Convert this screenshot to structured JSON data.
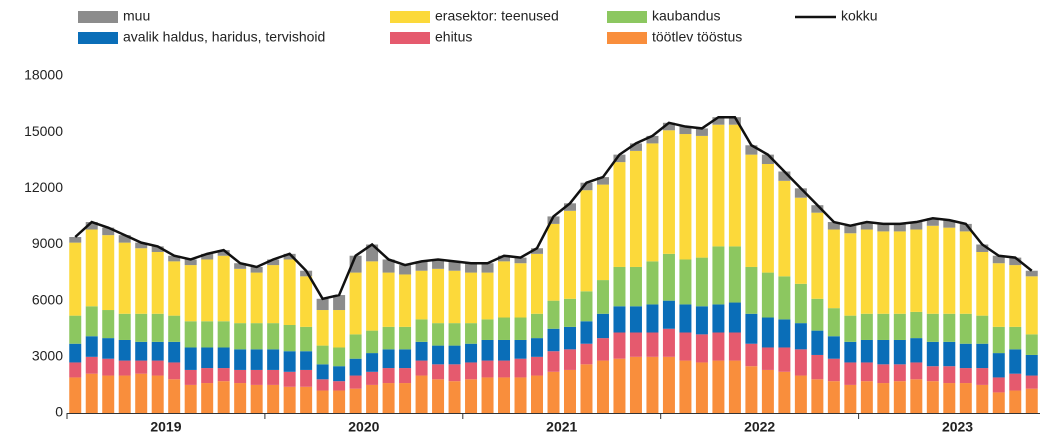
{
  "chart_data": {
    "type": "stacked_bar_line",
    "years": [
      "2019",
      "2020",
      "2021",
      "2022",
      "2023"
    ],
    "ylim": [
      0,
      18000
    ],
    "yticks": [
      0,
      3000,
      6000,
      9000,
      12000,
      15000,
      18000
    ],
    "grid": false,
    "series": [
      {
        "name": "töötlev tööstus",
        "color": "#f98e3c",
        "values": [
          1900,
          2100,
          2000,
          2000,
          2100,
          2000,
          1800,
          1500,
          1600,
          1700,
          1600,
          1500,
          1500,
          1400,
          1400,
          1200,
          1200,
          1300,
          1500,
          1600,
          1600,
          2000,
          1800,
          1700,
          1800,
          1900,
          1900,
          1900,
          2000,
          2200,
          2300,
          2600,
          2800,
          2900,
          3000,
          3000,
          3000,
          2800,
          2700,
          2800,
          2800,
          2500,
          2300,
          2200,
          2000,
          1800,
          1700,
          1500,
          1700,
          1600,
          1700,
          1800,
          1700,
          1600,
          1600,
          1500,
          1100,
          1200,
          1300
        ]
      },
      {
        "name": "ehitus",
        "color": "#e55a6e",
        "values": [
          800,
          900,
          900,
          800,
          700,
          800,
          900,
          800,
          800,
          700,
          700,
          800,
          800,
          800,
          900,
          600,
          500,
          700,
          700,
          800,
          800,
          800,
          800,
          900,
          900,
          900,
          900,
          1000,
          1000,
          1100,
          1100,
          1100,
          1200,
          1400,
          1300,
          1300,
          1500,
          1500,
          1500,
          1500,
          1500,
          1200,
          1200,
          1300,
          1400,
          1300,
          1200,
          1200,
          1000,
          1000,
          900,
          900,
          800,
          900,
          800,
          900,
          800,
          900,
          700
        ]
      },
      {
        "name": "avalik haldus, haridus, tervishoid",
        "color": "#0a6eb8",
        "values": [
          1000,
          1100,
          1100,
          1100,
          1000,
          1000,
          1100,
          1200,
          1100,
          1100,
          1100,
          1100,
          1100,
          1100,
          1000,
          800,
          800,
          900,
          1000,
          1000,
          1000,
          1000,
          1000,
          1000,
          1000,
          1100,
          1100,
          1000,
          1000,
          1200,
          1200,
          1200,
          1300,
          1400,
          1400,
          1500,
          1500,
          1500,
          1500,
          1500,
          1600,
          1600,
          1600,
          1500,
          1400,
          1300,
          1200,
          1100,
          1200,
          1300,
          1300,
          1300,
          1300,
          1300,
          1300,
          1300,
          1300,
          1300,
          1100
        ]
      },
      {
        "name": "kaubandus",
        "color": "#8cc760",
        "values": [
          1500,
          1600,
          1500,
          1400,
          1500,
          1500,
          1400,
          1400,
          1400,
          1400,
          1400,
          1400,
          1400,
          1400,
          1300,
          1000,
          1000,
          1300,
          1200,
          1200,
          1200,
          1200,
          1200,
          1200,
          1100,
          1100,
          1200,
          1200,
          1300,
          1500,
          1500,
          1600,
          1800,
          2100,
          2100,
          2300,
          2500,
          2400,
          2600,
          3100,
          3000,
          2500,
          2400,
          2300,
          2100,
          1700,
          1500,
          1400,
          1400,
          1400,
          1400,
          1400,
          1500,
          1500,
          1600,
          1500,
          1400,
          1200,
          1100
        ]
      },
      {
        "name": "erasektor: teenused",
        "color": "#fcd93a",
        "values": [
          3900,
          4100,
          4000,
          3800,
          3500,
          3300,
          2900,
          3000,
          3300,
          3500,
          2900,
          2700,
          3100,
          3500,
          2700,
          1900,
          2000,
          3300,
          3700,
          2900,
          2800,
          2600,
          2900,
          2800,
          2700,
          2500,
          3000,
          2900,
          3200,
          4100,
          4700,
          5400,
          5100,
          5600,
          6200,
          6300,
          6600,
          6700,
          6500,
          6500,
          6500,
          6000,
          5800,
          5100,
          4600,
          4600,
          4200,
          4400,
          4500,
          4400,
          4400,
          4400,
          4700,
          4600,
          4400,
          3400,
          3400,
          3300,
          3100
        ]
      },
      {
        "name": "muu",
        "color": "#8c8c8c",
        "values": [
          300,
          400,
          400,
          400,
          300,
          300,
          300,
          300,
          300,
          300,
          300,
          300,
          300,
          300,
          300,
          600,
          800,
          900,
          900,
          700,
          500,
          500,
          500,
          500,
          500,
          500,
          300,
          300,
          300,
          400,
          400,
          400,
          400,
          400,
          400,
          400,
          400,
          400,
          400,
          400,
          400,
          500,
          500,
          500,
          500,
          400,
          400,
          400,
          400,
          400,
          400,
          400,
          400,
          400,
          400,
          400,
          400,
          400,
          300
        ]
      }
    ],
    "line": {
      "name": "kokku",
      "color": "#111111",
      "values": [
        9400,
        10200,
        9900,
        9500,
        9100,
        8900,
        8400,
        8200,
        8500,
        8700,
        8000,
        7800,
        8200,
        8500,
        7600,
        6100,
        6300,
        8400,
        9000,
        8200,
        7900,
        8100,
        8200,
        8100,
        8000,
        8000,
        8400,
        8300,
        8800,
        10500,
        11200,
        12300,
        12600,
        13800,
        14400,
        14800,
        15500,
        15300,
        15200,
        15800,
        15800,
        14300,
        13800,
        12900,
        12000,
        11100,
        10200,
        10000,
        10200,
        10100,
        10100,
        10200,
        10400,
        10300,
        10100,
        9000,
        8400,
        8300,
        7600
      ]
    }
  }
}
